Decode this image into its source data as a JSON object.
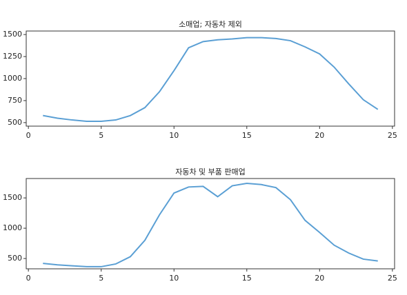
{
  "chart_data": [
    {
      "type": "line",
      "title": "소매업; 자동차 제외",
      "x": [
        1,
        2,
        3,
        4,
        5,
        6,
        7,
        8,
        9,
        10,
        11,
        12,
        13,
        14,
        15,
        16,
        17,
        18,
        19,
        20,
        21,
        22,
        23,
        24
      ],
      "values": [
        580,
        550,
        530,
        515,
        515,
        530,
        580,
        670,
        850,
        1090,
        1350,
        1420,
        1440,
        1450,
        1465,
        1465,
        1455,
        1430,
        1360,
        1280,
        1130,
        940,
        760,
        650
      ],
      "color": "#5a9fd4",
      "xlim": [
        -0.15,
        25.15
      ],
      "xticks": [
        0,
        5,
        10,
        15,
        20,
        25
      ],
      "ylim": [
        460,
        1540
      ],
      "yticks": [
        500,
        750,
        1000,
        1250,
        1500
      ]
    },
    {
      "type": "line",
      "title": "자동차 및 부품 판매업",
      "x": [
        1,
        2,
        3,
        4,
        5,
        6,
        7,
        8,
        9,
        10,
        11,
        12,
        13,
        14,
        15,
        16,
        17,
        18,
        19,
        20,
        21,
        22,
        23,
        24
      ],
      "values": [
        420,
        395,
        380,
        365,
        365,
        410,
        530,
        800,
        1220,
        1580,
        1680,
        1690,
        1520,
        1700,
        1740,
        1720,
        1670,
        1470,
        1130,
        930,
        720,
        590,
        490,
        460
      ],
      "color": "#5a9fd4",
      "xlim": [
        -0.15,
        25.15
      ],
      "xticks": [
        0,
        5,
        10,
        15,
        20,
        25
      ],
      "ylim": [
        330,
        1820
      ],
      "yticks": [
        500,
        1000,
        1500
      ]
    }
  ]
}
